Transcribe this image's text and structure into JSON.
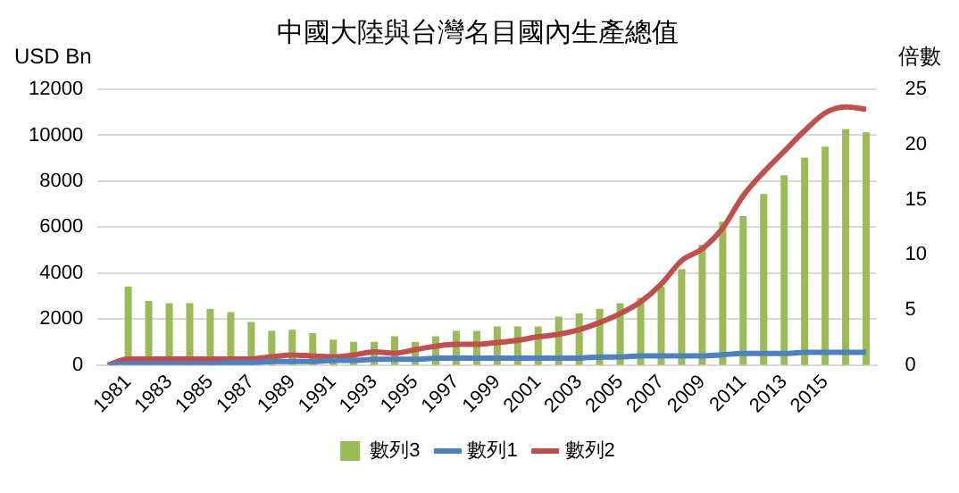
{
  "chart_data": {
    "type": "bar",
    "title": "中國大陸與台灣名目國內生產總值",
    "ylabel": "USD Bn",
    "y2label": "倍數",
    "categories": [
      null,
      "1981",
      null,
      "1983",
      null,
      "1985",
      null,
      "1987",
      null,
      "1989",
      null,
      "1991",
      null,
      "1993",
      null,
      "1995",
      null,
      "1997",
      null,
      "1999",
      null,
      "2001",
      null,
      "2003",
      null,
      "2005",
      null,
      "2007",
      null,
      "2009",
      null,
      "2011",
      null,
      "2013",
      null,
      "2015",
      null,
      null
    ],
    "series": [
      {
        "name": "數列3",
        "axis": "y2",
        "color": "#9bbb59",
        "values": [
          null,
          7.1,
          5.8,
          5.6,
          5.6,
          5.1,
          4.8,
          3.9,
          3.1,
          3.2,
          2.9,
          2.3,
          2.1,
          2.1,
          2.6,
          2.1,
          2.6,
          3.1,
          3.1,
          3.5,
          3.5,
          3.5,
          4.4,
          4.7,
          5.1,
          5.6,
          6.1,
          7.1,
          8.7,
          10.9,
          13.0,
          13.5,
          15.5,
          17.2,
          18.8,
          19.8,
          21.4,
          21.1
        ]
      },
      {
        "name": "數列1",
        "type": "line",
        "color": "#4f81bd",
        "values": [
          0,
          50,
          50,
          50,
          50,
          50,
          100,
          100,
          150,
          150,
          150,
          200,
          200,
          250,
          250,
          250,
          300,
          300,
          300,
          300,
          300,
          300,
          300,
          300,
          350,
          350,
          400,
          400,
          400,
          400,
          450,
          500,
          500,
          500,
          550,
          550,
          550,
          550
        ]
      },
      {
        "name": "數列2",
        "type": "line",
        "color": "#c0504d",
        "values": [
          0,
          260,
          260,
          260,
          260,
          260,
          260,
          260,
          360,
          440,
          390,
          360,
          440,
          570,
          510,
          670,
          820,
          900,
          900,
          980,
          1080,
          1230,
          1340,
          1540,
          1850,
          2240,
          2750,
          3520,
          4550,
          5060,
          5960,
          7370,
          8400,
          9300,
          10200,
          10970,
          11230,
          11130
        ]
      }
    ],
    "ylim": [
      0,
      12000
    ],
    "yticks": [
      0,
      2000,
      4000,
      6000,
      8000,
      10000,
      12000
    ],
    "y2lim": [
      0,
      25
    ],
    "y2ticks": [
      0,
      5,
      10,
      15,
      20,
      25
    ],
    "grid": "y",
    "legend": "bottom",
    "marker": "none"
  }
}
